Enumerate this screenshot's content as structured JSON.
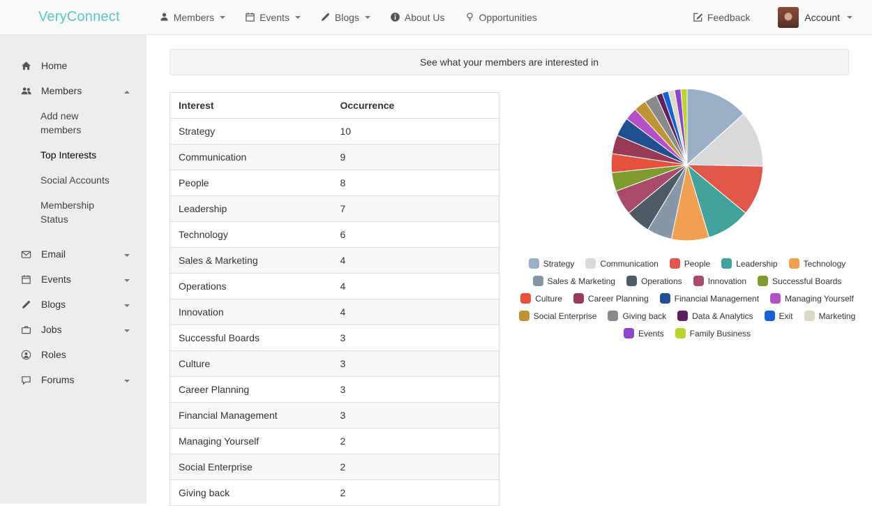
{
  "navbar": {
    "brand": "VeryConnect",
    "menus": [
      {
        "label": "Members",
        "icon": "user-icon",
        "caret": true
      },
      {
        "label": "Events",
        "icon": "calendar-icon",
        "caret": true
      },
      {
        "label": "Blogs",
        "icon": "pencil-icon",
        "caret": true
      },
      {
        "label": "About Us",
        "icon": "info-icon",
        "caret": false
      },
      {
        "label": "Opportunities",
        "icon": "lightbulb-icon",
        "caret": false
      }
    ],
    "feedback_label": "Feedback",
    "feedback_icon": "edit-icon",
    "account_label": "Account"
  },
  "sidebar": {
    "items": [
      {
        "label": "Home",
        "icon": "home-icon"
      },
      {
        "label": "Members",
        "icon": "users-icon",
        "caret": "up",
        "children": [
          "Add new members",
          "Top Interests",
          "Social Accounts",
          "Membership Status"
        ],
        "active_child": "Top Interests"
      },
      {
        "label": "Email",
        "icon": "envelope-icon",
        "caret": "down"
      },
      {
        "label": "Events",
        "icon": "calendar-icon",
        "caret": "down"
      },
      {
        "label": "Blogs",
        "icon": "pencil-icon",
        "caret": "down"
      },
      {
        "label": "Jobs",
        "icon": "briefcase-icon",
        "caret": "down"
      },
      {
        "label": "Roles",
        "icon": "person-circle-icon"
      },
      {
        "label": "Forums",
        "icon": "comment-icon",
        "caret": "down"
      }
    ]
  },
  "main": {
    "banner": "See what your members are interested in",
    "table": {
      "headers": [
        "Interest",
        "Occurrence"
      ],
      "rows": [
        {
          "interest": "Strategy",
          "occurrence": 10
        },
        {
          "interest": "Communication",
          "occurrence": 9
        },
        {
          "interest": "People",
          "occurrence": 8
        },
        {
          "interest": "Leadership",
          "occurrence": 7
        },
        {
          "interest": "Technology",
          "occurrence": 6
        },
        {
          "interest": "Sales & Marketing",
          "occurrence": 4
        },
        {
          "interest": "Operations",
          "occurrence": 4
        },
        {
          "interest": "Innovation",
          "occurrence": 4
        },
        {
          "interest": "Successful Boards",
          "occurrence": 3
        },
        {
          "interest": "Culture",
          "occurrence": 3
        },
        {
          "interest": "Career Planning",
          "occurrence": 3
        },
        {
          "interest": "Financial Management",
          "occurrence": 3
        },
        {
          "interest": "Managing Yourself",
          "occurrence": 2
        },
        {
          "interest": "Social Enterprise",
          "occurrence": 2
        },
        {
          "interest": "Giving back",
          "occurrence": 2
        }
      ]
    }
  },
  "chart_data": {
    "type": "pie",
    "title": "",
    "legend_position": "bottom",
    "categories": [
      "Strategy",
      "Communication",
      "People",
      "Leadership",
      "Technology",
      "Sales & Marketing",
      "Operations",
      "Innovation",
      "Successful Boards",
      "Culture",
      "Career Planning",
      "Financial Management",
      "Managing Yourself",
      "Social Enterprise",
      "Giving back",
      "Data & Analytics",
      "Exit",
      "Marketing",
      "Events",
      "Family Business"
    ],
    "values": [
      10,
      9,
      8,
      7,
      6,
      4,
      4,
      4,
      3,
      3,
      3,
      3,
      2,
      2,
      2,
      1,
      1,
      1,
      1,
      1
    ],
    "colors": [
      "#9bafc7",
      "#d9d9d9",
      "#e2574c",
      "#41a39a",
      "#f0a050",
      "#8797a7",
      "#4e5a64",
      "#a84a68",
      "#7d9b2f",
      "#e6503f",
      "#993a55",
      "#20508f",
      "#b44fc8",
      "#bd9334",
      "#8a8a8a",
      "#5e2060",
      "#1563d6",
      "#ddd8c8",
      "#8e44cc",
      "#bcd22f"
    ]
  }
}
